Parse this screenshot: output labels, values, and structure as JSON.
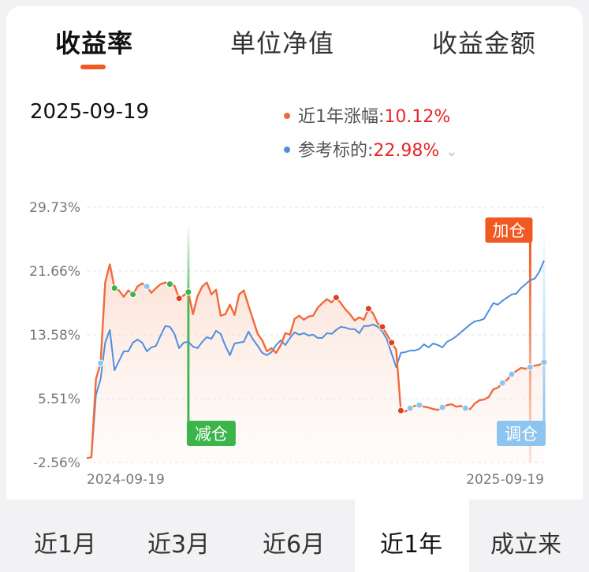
{
  "tabs": {
    "t1": "收益率",
    "t2": "单位净值",
    "t3": "收益金额"
  },
  "header": {
    "date": "2025-09-19",
    "series1_label": "近1年涨幅:",
    "series1_value": "10.12%",
    "series2_label": "参考标的:",
    "series2_value": "22.98%"
  },
  "colors": {
    "fund": "#f06a3e",
    "benchmark": "#4f8fde",
    "reduce": "#3bb54a",
    "add": "#f05a22",
    "adjust": "#8ec5f0",
    "accent": "#f05a22"
  },
  "chart_data": {
    "type": "line",
    "y_ticks": [
      "29.73%",
      "21.66%",
      "13.58%",
      "5.51%",
      "-2.56%"
    ],
    "ylim": [
      -2.56,
      29.73
    ],
    "x_start_label": "2024-09-19",
    "x_end_label": "2025-09-19",
    "x_count": 100,
    "grid": true,
    "series": [
      {
        "name": "近1年涨幅",
        "color": "#f06a3e",
        "values": [
          -2.0,
          -1.9,
          8.0,
          10.0,
          20.2,
          22.5,
          19.5,
          19.2,
          18.4,
          19.2,
          18.7,
          19.7,
          20.1,
          19.7,
          18.9,
          19.5,
          20.0,
          20.2,
          20.0,
          19.8,
          18.2,
          18.6,
          19.0,
          16.2,
          18.5,
          19.7,
          20.2,
          18.7,
          19.3,
          16.0,
          16.2,
          17.4,
          16.1,
          18.7,
          19.2,
          17.3,
          15.5,
          13.7,
          12.9,
          11.5,
          11.9,
          11.3,
          12.3,
          13.8,
          13.6,
          15.6,
          16.0,
          15.5,
          15.9,
          16.0,
          17.0,
          17.6,
          18.1,
          17.7,
          18.3,
          17.6,
          16.8,
          16.2,
          15.4,
          15.8,
          15.5,
          16.9,
          16.3,
          15.0,
          14.6,
          13.6,
          12.6,
          11.7,
          4.0,
          3.9,
          4.3,
          4.6,
          4.7,
          4.5,
          4.4,
          4.2,
          4.1,
          4.4,
          4.7,
          4.8,
          4.5,
          4.6,
          4.3,
          4.2,
          4.9,
          5.3,
          5.4,
          5.7,
          6.7,
          6.9,
          7.5,
          7.9,
          8.6,
          9.0,
          9.4,
          9.3,
          9.5,
          9.7,
          9.8,
          10.12
        ]
      },
      {
        "name": "参考标的",
        "color": "#4f8fde",
        "values": [
          -2.0,
          -1.9,
          6.0,
          8.0,
          12.6,
          14.2,
          9.1,
          10.3,
          11.5,
          11.5,
          12.6,
          13.0,
          12.6,
          11.5,
          12.0,
          12.2,
          13.5,
          14.7,
          14.6,
          13.7,
          11.9,
          12.6,
          12.7,
          12.1,
          11.9,
          12.7,
          13.3,
          13.1,
          14.1,
          13.7,
          12.2,
          11.0,
          12.5,
          12.6,
          12.7,
          14.0,
          13.0,
          12.2,
          11.3,
          11.0,
          11.4,
          12.3,
          12.9,
          12.3,
          13.2,
          13.9,
          13.6,
          13.8,
          13.5,
          13.6,
          13.2,
          13.2,
          13.8,
          13.7,
          14.2,
          14.6,
          14.5,
          14.3,
          14.3,
          13.8,
          14.7,
          14.7,
          14.9,
          14.6,
          14.0,
          13.0,
          11.2,
          9.5,
          11.3,
          11.4,
          11.6,
          11.6,
          11.8,
          12.4,
          12.0,
          12.5,
          12.3,
          12.0,
          12.7,
          13.0,
          13.4,
          13.9,
          14.4,
          14.9,
          15.3,
          15.4,
          15.6,
          16.6,
          17.6,
          17.4,
          17.9,
          18.3,
          18.7,
          18.8,
          19.5,
          20.0,
          20.5,
          20.7,
          21.6,
          22.98
        ]
      }
    ],
    "trade_markers": [
      {
        "label": "减仓",
        "index": 22
      },
      {
        "label": "加仓",
        "index": 96
      },
      {
        "label": "调仓",
        "index": 99
      }
    ]
  },
  "time_tabs": {
    "m1": "近1月",
    "m3": "近3月",
    "m6": "近6月",
    "y1": "近1年",
    "all": "成立来"
  }
}
